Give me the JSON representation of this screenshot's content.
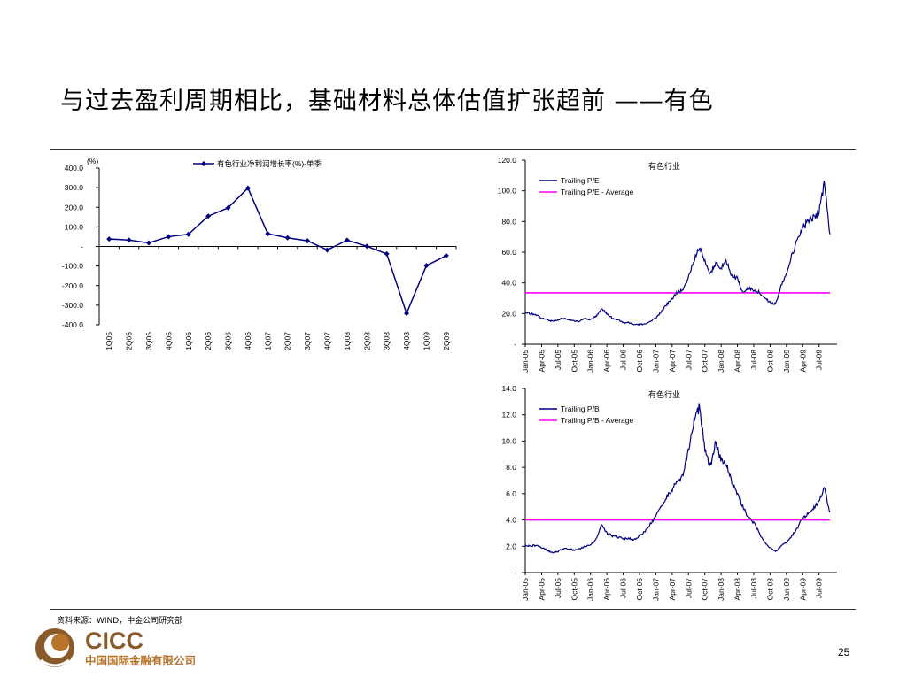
{
  "slide": {
    "title": "与过去盈利周期相比，基础材料总体估值扩张超前 ——有色",
    "source": "资料来源：WIND，中金公司研究部",
    "page_number": "25",
    "logo_text": "CICC",
    "logo_subtitle": "中国国际金融有限公司",
    "colors": {
      "navy": "#000080",
      "magenta": "#ff00ff",
      "brand_brown": "#8a5a2b",
      "brand_gold": "#b8742a"
    }
  },
  "chart_data": [
    {
      "id": "growth",
      "type": "line",
      "unit_label": "(%)",
      "legend": [
        "有色行业净利润增长率(%)-单季"
      ],
      "categories": [
        "1Q05",
        "2Q05",
        "3Q05",
        "4Q05",
        "1Q06",
        "2Q06",
        "3Q06",
        "4Q06",
        "1Q07",
        "2Q07",
        "3Q07",
        "4Q07",
        "1Q08",
        "2Q08",
        "3Q08",
        "4Q08",
        "1Q09",
        "2Q09"
      ],
      "series": [
        {
          "name": "有色行业净利润增长率(%)-单季",
          "values": [
            38,
            33,
            18,
            50,
            62,
            155,
            197,
            298,
            65,
            44,
            29,
            -18,
            32,
            1,
            -38,
            -342,
            -98,
            -47
          ],
          "color": "#000080"
        }
      ],
      "ylim": [
        -400,
        400
      ],
      "yticks": [
        400,
        300,
        200,
        100,
        0,
        -100,
        -200,
        -300,
        -400
      ],
      "ytick_labels": [
        "400.0",
        "300.0",
        "200.0",
        "100.0",
        "-",
        "-100.0",
        "-200.0",
        "-300.0",
        "-400.0"
      ]
    },
    {
      "id": "pe",
      "type": "line",
      "title": "有色行业",
      "legend": [
        "Trailing P/E",
        "Trailing P/E - Average"
      ],
      "x_labels": [
        "Jan-05",
        "Apr-05",
        "Jul-05",
        "Oct-05",
        "Jan-06",
        "Apr-06",
        "Jul-06",
        "Oct-06",
        "Jan-07",
        "Apr-07",
        "Jul-07",
        "Oct-07",
        "Jan-08",
        "Apr-08",
        "Jul-08",
        "Oct-08",
        "Jan-09",
        "Apr-09",
        "Jul-09"
      ],
      "ylim": [
        0,
        120
      ],
      "yticks": [
        120,
        100,
        80,
        60,
        40,
        20,
        0
      ],
      "ytick_labels": [
        "120.0",
        "100.0",
        "80.0",
        "60.0",
        "40.0",
        "20.0",
        "-"
      ],
      "average": 33.5,
      "series": [
        {
          "name": "Trailing P/E",
          "color": "#000080",
          "months": [
            0,
            1,
            2,
            3,
            4,
            5,
            6,
            7,
            8,
            9,
            10,
            11,
            12,
            13,
            14,
            15,
            16,
            17,
            18,
            19,
            20,
            21,
            22,
            23,
            24,
            25,
            26,
            27,
            28,
            29,
            30,
            31,
            32,
            33,
            34,
            35,
            36,
            37,
            38,
            39,
            40,
            41,
            42,
            43,
            44,
            45,
            46,
            47,
            48,
            49,
            50,
            51,
            52,
            53,
            54,
            55,
            56
          ],
          "values": [
            21,
            20,
            19,
            17,
            16,
            15,
            16,
            17,
            16,
            15,
            15,
            17,
            16,
            18,
            23,
            20,
            17,
            16,
            14,
            14,
            13,
            13,
            13,
            15,
            17,
            21,
            26,
            30,
            34,
            35,
            44,
            55,
            63,
            55,
            46,
            53,
            50,
            54,
            44,
            43,
            33,
            37,
            35,
            34,
            30,
            27,
            26,
            38,
            46,
            58,
            68,
            76,
            80,
            83,
            86,
            105,
            70
          ]
        }
      ]
    },
    {
      "id": "pb",
      "type": "line",
      "title": "有色行业",
      "legend": [
        "Trailing P/B",
        "Trailing P/B - Average"
      ],
      "x_labels": [
        "Jan-05",
        "Apr-05",
        "Jul-05",
        "Oct-05",
        "Jan-06",
        "Apr-06",
        "Jul-06",
        "Oct-06",
        "Jan-07",
        "Apr-07",
        "Jul-07",
        "Oct-07",
        "Jan-08",
        "Apr-08",
        "Jul-08",
        "Oct-08",
        "Jan-09",
        "Apr-09",
        "Jul-09"
      ],
      "ylim": [
        0,
        14
      ],
      "yticks": [
        14,
        12,
        10,
        8,
        6,
        4,
        2,
        0
      ],
      "ytick_labels": [
        "14.0",
        "12.0",
        "10.0",
        "8.0",
        "6.0",
        "4.0",
        "2.0",
        "-"
      ],
      "average": 4.0,
      "series": [
        {
          "name": "Trailing P/B",
          "color": "#000080",
          "months": [
            0,
            1,
            2,
            3,
            4,
            5,
            6,
            7,
            8,
            9,
            10,
            11,
            12,
            13,
            14,
            15,
            16,
            17,
            18,
            19,
            20,
            21,
            22,
            23,
            24,
            25,
            26,
            27,
            28,
            29,
            30,
            31,
            32,
            33,
            34,
            35,
            36,
            37,
            38,
            39,
            40,
            41,
            42,
            43,
            44,
            45,
            46,
            47,
            48,
            49,
            50,
            51,
            52,
            53,
            54,
            55,
            56
          ],
          "values": [
            2.1,
            2.0,
            2.1,
            1.9,
            1.7,
            1.5,
            1.6,
            1.8,
            1.8,
            1.7,
            1.8,
            2.0,
            2.1,
            2.5,
            3.7,
            3.0,
            2.8,
            2.7,
            2.6,
            2.6,
            2.5,
            2.8,
            3.1,
            3.7,
            4.3,
            5.0,
            5.8,
            6.3,
            7.0,
            7.4,
            9.4,
            11.5,
            12.6,
            9.5,
            8.0,
            10.0,
            8.5,
            8.2,
            6.8,
            6.0,
            5.0,
            4.2,
            3.8,
            3.0,
            2.3,
            1.9,
            1.6,
            2.0,
            2.3,
            2.8,
            3.4,
            4.1,
            4.5,
            4.9,
            5.5,
            6.5,
            4.5
          ]
        }
      ]
    }
  ]
}
